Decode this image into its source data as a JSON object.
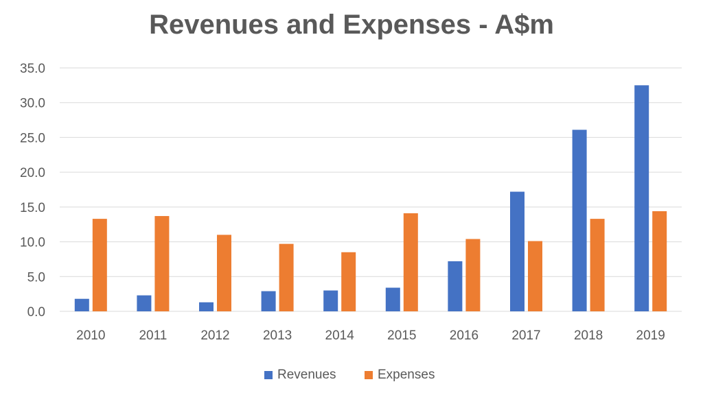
{
  "chart_data": {
    "type": "bar",
    "title": "Revenues and Expenses - A$m",
    "xlabel": "",
    "ylabel": "",
    "categories": [
      "2010",
      "2011",
      "2012",
      "2013",
      "2014",
      "2015",
      "2016",
      "2017",
      "2018",
      "2019"
    ],
    "series": [
      {
        "name": "Revenues",
        "color": "#4472C4",
        "values": [
          1.8,
          2.3,
          1.3,
          2.9,
          3.0,
          3.4,
          7.2,
          17.2,
          26.1,
          32.5
        ]
      },
      {
        "name": "Expenses",
        "color": "#ED7D31",
        "values": [
          13.3,
          13.7,
          11.0,
          9.7,
          8.5,
          14.1,
          10.4,
          10.1,
          13.3,
          14.4
        ]
      }
    ],
    "ylim": [
      0,
      35
    ],
    "yticks": [
      0.0,
      5.0,
      10.0,
      15.0,
      20.0,
      25.0,
      30.0,
      35.0
    ],
    "ytick_labels": [
      "0.0",
      "5.0",
      "10.0",
      "15.0",
      "20.0",
      "25.0",
      "30.0",
      "35.0"
    ],
    "grid": true,
    "legend_position": "bottom-center",
    "gridline_color": "#D9D9D9"
  }
}
